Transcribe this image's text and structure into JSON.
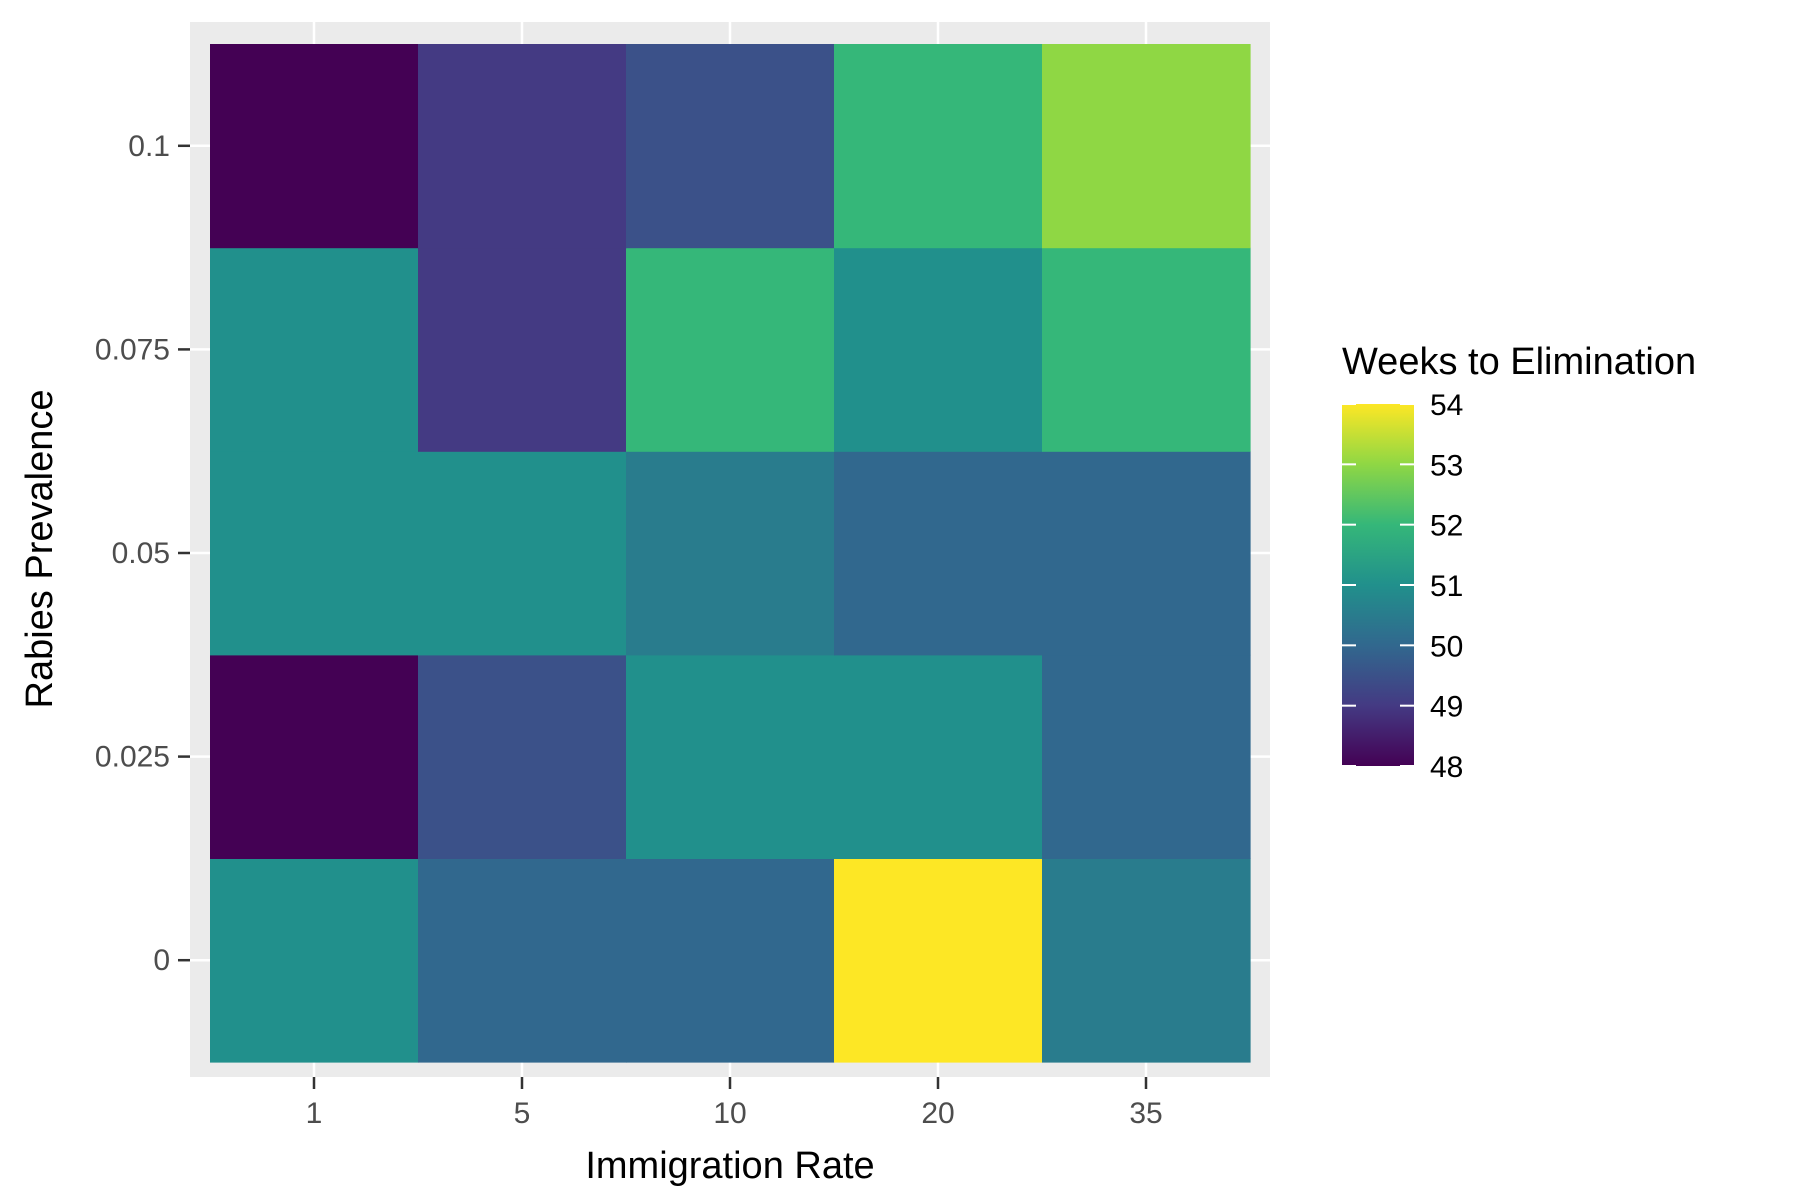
{
  "chart_data": {
    "type": "heatmap",
    "xlabel": "Immigration Rate",
    "ylabel": "Rabies Prevalence",
    "x_categories": [
      "1",
      "5",
      "10",
      "20",
      "35"
    ],
    "y_categories": [
      "0",
      "0.025",
      "0.05",
      "0.075",
      "0.1"
    ],
    "values": [
      [
        51,
        50,
        50,
        54,
        50.5
      ],
      [
        48,
        49.5,
        51,
        51,
        50
      ],
      [
        51,
        51,
        50.5,
        50,
        50
      ],
      [
        51,
        49,
        52,
        51,
        52
      ],
      [
        48,
        49,
        49.5,
        52,
        53
      ]
    ],
    "legend": {
      "title": "Weeks to Elimination",
      "ticks": [
        "54",
        "53",
        "52",
        "51",
        "50",
        "49",
        "48"
      ],
      "range": [
        48,
        54
      ]
    },
    "colorscale": [
      "#440154",
      "#443A83",
      "#31688E",
      "#21908C",
      "#35B779",
      "#8FD744",
      "#FDE725"
    ],
    "grid": true,
    "panel_background": "#EBEBEB",
    "grid_color": "#FFFFFF"
  }
}
